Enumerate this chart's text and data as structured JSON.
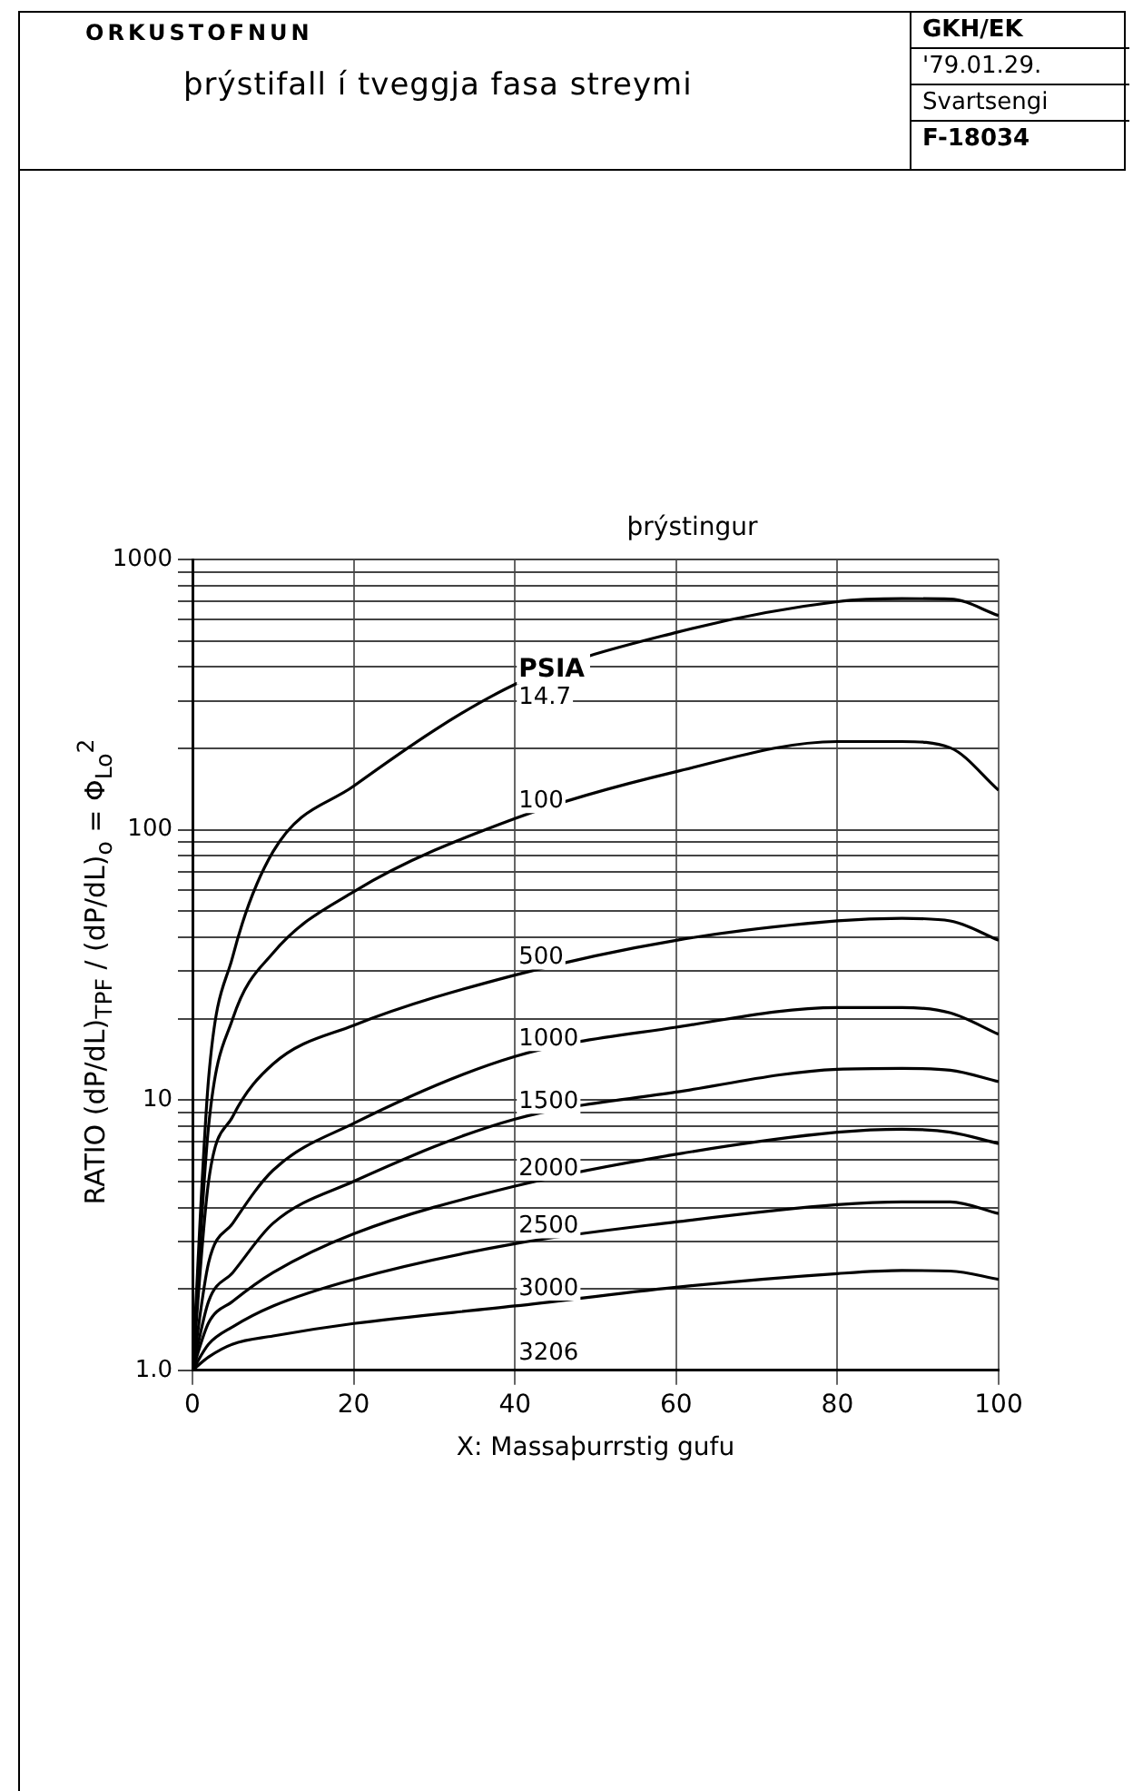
{
  "chart_data": {
    "type": "line",
    "title": "þrýstifall í tveggja fasa streymi",
    "xlabel": "X: Massaþurrstig gufu",
    "ylabel": "RATIO (dP/dL)$_{TPF}$ / (dP/dL)$_{o}$ = Φ$_{Lo}$$^{2}$",
    "legend_title": "þrýstingur",
    "annotations": [
      "ORKUSTOFNUN",
      "GKH/EK",
      "'79.01.29.",
      "Svartsengi",
      "F-18034",
      "PSIA"
    ],
    "x": [
      0,
      2,
      5,
      10,
      20,
      40,
      60,
      80,
      88,
      94,
      100
    ],
    "series": [
      {
        "name": "14.7",
        "color": "#000000",
        "values": [
          1,
          12,
          34,
          83,
          145,
          345,
          537,
          698,
          716,
          714,
          620
        ]
      },
      {
        "name": "100",
        "color": "#000000",
        "values": [
          1,
          8,
          20,
          35,
          59,
          110,
          164,
          212,
          212,
          201,
          140
        ]
      },
      {
        "name": "500",
        "color": "#000000",
        "values": [
          1,
          5,
          8.7,
          13.6,
          18.9,
          29,
          39,
          46,
          47,
          46,
          39
        ]
      },
      {
        "name": "1000",
        "color": "#000000",
        "values": [
          1,
          2.5,
          3.5,
          5.5,
          8.2,
          14.5,
          18.6,
          22,
          22,
          21,
          17.5
        ]
      },
      {
        "name": "1500",
        "color": "#000000",
        "values": [
          1,
          1.8,
          2.3,
          3.5,
          5,
          8.5,
          10.7,
          13,
          13.1,
          12.9,
          11.7
        ]
      },
      {
        "name": "2000",
        "color": "#000000",
        "values": [
          1,
          1.5,
          1.8,
          2.3,
          3.2,
          4.8,
          6.3,
          7.6,
          7.8,
          7.6,
          6.9
        ]
      },
      {
        "name": "2500",
        "color": "#000000",
        "values": [
          1,
          1.25,
          1.45,
          1.73,
          2.17,
          2.94,
          3.54,
          4.1,
          4.2,
          4.2,
          3.8
        ]
      },
      {
        "name": "3000",
        "color": "#000000",
        "values": [
          1,
          1.12,
          1.25,
          1.34,
          1.49,
          1.73,
          2.03,
          2.28,
          2.34,
          2.33,
          2.17
        ]
      },
      {
        "name": "3206",
        "color": "#000000",
        "values": [
          1,
          1,
          1,
          1,
          1,
          1,
          1,
          1,
          1,
          1,
          1
        ]
      }
    ],
    "xlim": [
      0,
      100
    ],
    "xticks": [
      0,
      20,
      40,
      60,
      80,
      100
    ],
    "ylim": [
      1,
      1000
    ],
    "yticks": [
      {
        "value": 1,
        "label": "1.0"
      },
      {
        "value": 2,
        "label": null
      },
      {
        "value": 3,
        "label": null
      },
      {
        "value": 4,
        "label": null
      },
      {
        "value": 5,
        "label": null
      },
      {
        "value": 6,
        "label": null
      },
      {
        "value": 7,
        "label": null
      },
      {
        "value": 8,
        "label": null
      },
      {
        "value": 9,
        "label": null
      },
      10,
      {
        "value": 20,
        "label": null
      },
      {
        "value": 30,
        "label": null
      },
      {
        "value": 40,
        "label": null
      },
      {
        "value": 50,
        "label": null
      },
      {
        "value": 60,
        "label": null
      },
      {
        "value": 70,
        "label": null
      },
      {
        "value": 80,
        "label": null
      },
      {
        "value": 90,
        "label": null
      },
      100,
      {
        "value": 200,
        "label": null
      },
      {
        "value": 300,
        "label": null
      },
      {
        "value": 400,
        "label": null
      },
      {
        "value": 500,
        "label": null
      },
      {
        "value": 600,
        "label": null
      },
      {
        "value": 700,
        "label": null
      },
      {
        "value": 800,
        "label": null
      },
      {
        "value": 900,
        "label": null
      },
      1000
    ],
    "log": "y",
    "grid": true,
    "legend": false,
    "marker": "none",
    "line_style": "solid"
  }
}
